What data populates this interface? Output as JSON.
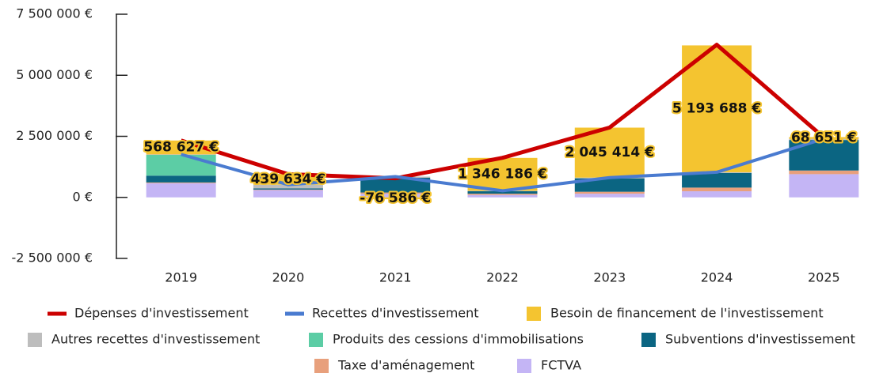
{
  "chart_data": {
    "type": "bar",
    "categories": [
      "2019",
      "2020",
      "2021",
      "2022",
      "2023",
      "2024",
      "2025"
    ],
    "ylim": [
      -2500000,
      7500000
    ],
    "yticks": [
      {
        "value": -2500000,
        "label": "-2 500 000 €"
      },
      {
        "value": 0,
        "label": "0 €"
      },
      {
        "value": 2500000,
        "label": "2 500 000 €"
      },
      {
        "value": 5000000,
        "label": "5 000 000 €"
      },
      {
        "value": 7500000,
        "label": "7 500 000 €"
      }
    ],
    "stacked": true,
    "series": [
      {
        "name": "Dépenses d'investissement",
        "type": "line",
        "color": "#cc0000",
        "values": [
          2330000,
          950000,
          780000,
          1620000,
          2860000,
          6250000,
          2450000
        ]
      },
      {
        "name": "Recettes d'investissement",
        "type": "line",
        "color": "#4a7bd0",
        "values": [
          1760000,
          520000,
          850000,
          270000,
          810000,
          1030000,
          2400000
        ]
      },
      {
        "name": "Besoin de financement de l'investissement",
        "type": "bar",
        "color": "#f4c430",
        "values": [
          568627,
          439634,
          -76586,
          1346186,
          2045414,
          5193688,
          68651
        ],
        "value_labels": [
          "568 627 €",
          "439 634 €",
          "-76 586 €",
          "1 346 186 €",
          "2 045 414 €",
          "5 193 688 €",
          "68 651 €"
        ]
      },
      {
        "name": "Autres recettes d'investissement",
        "type": "bar",
        "color": "#bdbdbd",
        "values": [
          20000,
          150000,
          50000,
          20000,
          30000,
          30000,
          50000
        ]
      },
      {
        "name": "Produits des cessions d'immobilisations",
        "type": "bar",
        "color": "#5ccda5",
        "values": [
          850000,
          0,
          0,
          0,
          0,
          0,
          0
        ]
      },
      {
        "name": "Subventions d'investissement",
        "type": "bar",
        "color": "#0b6582",
        "values": [
          280000,
          50000,
          600000,
          100000,
          550000,
          600000,
          1250000
        ]
      },
      {
        "name": "Taxe d'aménagement",
        "type": "bar",
        "color": "#e8a07c",
        "values": [
          30000,
          20000,
          50000,
          50000,
          80000,
          150000,
          150000
        ]
      },
      {
        "name": "FCTVA",
        "type": "bar",
        "color": "#c4b5f5",
        "values": [
          580000,
          300000,
          150000,
          100000,
          150000,
          250000,
          950000
        ]
      }
    ]
  }
}
